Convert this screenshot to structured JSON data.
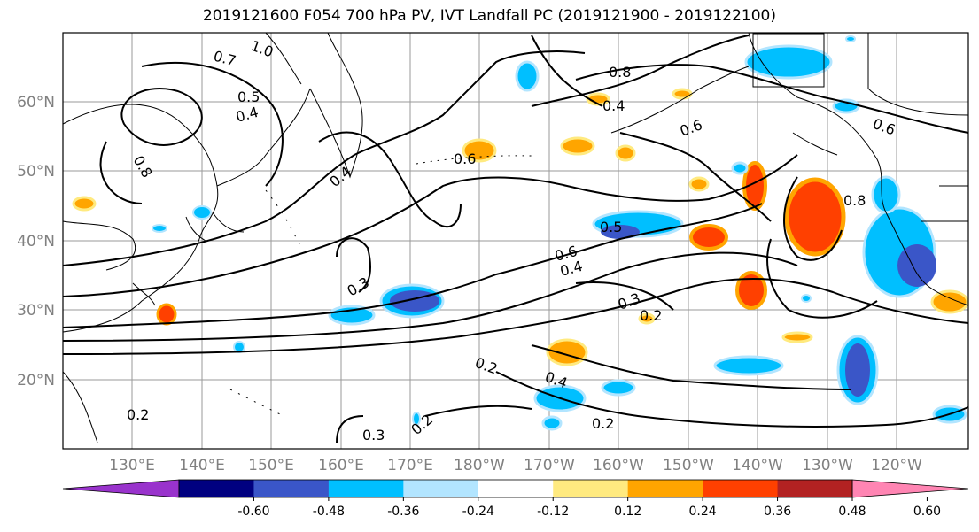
{
  "title": "2019121600 F054 700 hPa PV, IVT Landfall PC (2019121900 - 2019122100)",
  "map": {
    "lon_ticks": [
      "130°E",
      "140°E",
      "150°E",
      "160°E",
      "170°E",
      "180°W",
      "170°W",
      "160°W",
      "150°W",
      "140°W",
      "130°W",
      "120°W"
    ],
    "lat_ticks": [
      "60°N",
      "50°N",
      "40°N",
      "30°N",
      "20°N"
    ]
  },
  "colorbar": {
    "colors": [
      "#9933cc",
      "#000080",
      "#3a56c8",
      "#00bfff",
      "#b2e5ff",
      "#ffffff",
      "#ffea80",
      "#ffa500",
      "#ff4000",
      "#b22222",
      "#ff85b3"
    ],
    "labels": [
      "-0.60",
      "-0.48",
      "-0.36",
      "-0.24",
      "-0.12",
      "0.12",
      "0.24",
      "0.36",
      "0.48",
      "0.60"
    ]
  },
  "contour_labels": [
    "1.0",
    "0.7",
    "0.5",
    "0.4",
    "0.8",
    "0.6",
    "0.4",
    "0.3",
    "0.2",
    "0.5",
    "0.6",
    "0.4",
    "0.3",
    "0.2",
    "0.2",
    "0.3",
    "0.2",
    "0.2",
    "0.4",
    "0.6",
    "0.8",
    "0.8",
    "0.4",
    "0.6"
  ]
}
